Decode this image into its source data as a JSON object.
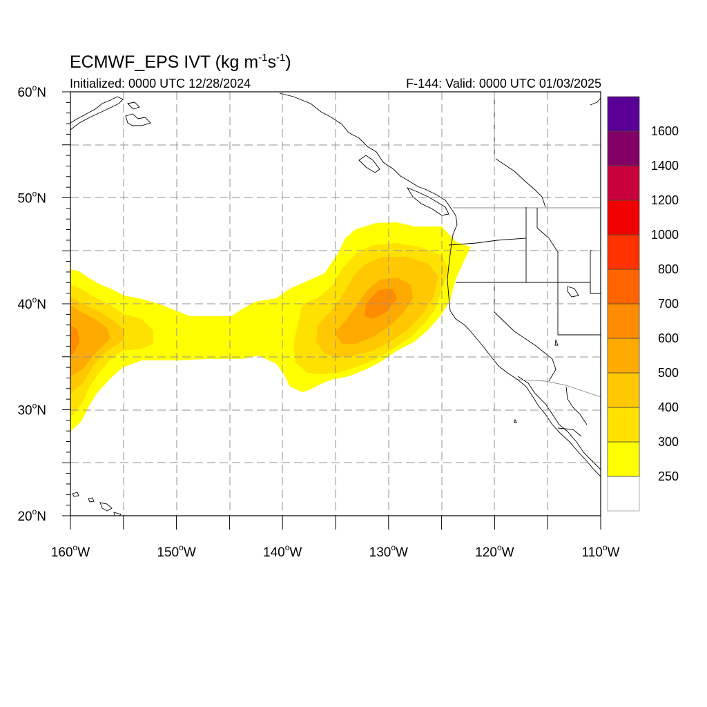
{
  "header": {
    "title": "ECMWF_EPS IVT (kg m",
    "title_exp1": "-1",
    "title_mid": "s",
    "title_exp2": "-1",
    "title_end": ")",
    "initialized": "Initialized: 0000 UTC 12/28/2024",
    "valid": "F-144: Valid: 0000 UTC 01/03/2025"
  },
  "map": {
    "lon_range": [
      -160,
      -110
    ],
    "lat_range": [
      20,
      60
    ],
    "x_ticks": [
      {
        "lon": -160,
        "label": "160",
        "hemi": "W"
      },
      {
        "lon": -150,
        "label": "150",
        "hemi": "W"
      },
      {
        "lon": -140,
        "label": "140",
        "hemi": "W"
      },
      {
        "lon": -130,
        "label": "130",
        "hemi": "W"
      },
      {
        "lon": -120,
        "label": "120",
        "hemi": "W"
      },
      {
        "lon": -110,
        "label": "110",
        "hemi": "W"
      }
    ],
    "y_ticks": [
      {
        "lat": 60,
        "label": "60",
        "hemi": "N"
      },
      {
        "lat": 50,
        "label": "50",
        "hemi": "N"
      },
      {
        "lat": 40,
        "label": "40",
        "hemi": "N"
      },
      {
        "lat": 30,
        "label": "30",
        "hemi": "N"
      },
      {
        "lat": 20,
        "label": "20",
        "hemi": "N"
      }
    ],
    "gridlines": "dashed gray every 5 degrees",
    "field": "IVT (kg m-1 s-1) atmospheric river from central Pacific to Oregon/N. California coast"
  },
  "colorbar": {
    "labels": [
      "250",
      "300",
      "400",
      "500",
      "600",
      "700",
      "800",
      "1000",
      "1200",
      "1400",
      "1600"
    ],
    "colors": [
      "#ffffff",
      "#ffff00",
      "#ffe100",
      "#ffc800",
      "#ffaa00",
      "#ff8c00",
      "#ff6400",
      "#ff3200",
      "#f00000",
      "#c8003c",
      "#820064",
      "#5a0096"
    ]
  }
}
